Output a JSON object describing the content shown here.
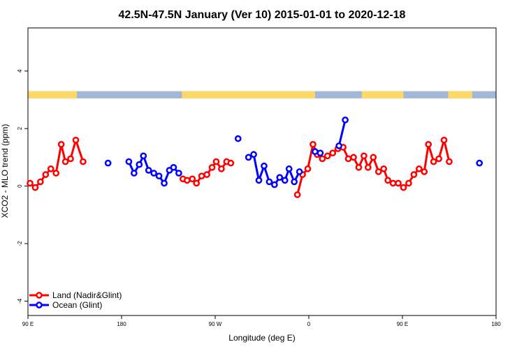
{
  "chart_data": {
    "type": "line",
    "title": "42.5N-47.5N January (Ver 10)   2015-01-01 to 2020-12-18",
    "xlabel": "Longitude (deg E)",
    "ylabel": "XCO2 - MLO trend (ppm)",
    "xlim": [
      90,
      540
    ],
    "ylim": [
      -4.5,
      5.5
    ],
    "x_ticks": [
      {
        "value": 90,
        "label": "90 E"
      },
      {
        "value": 180,
        "label": "180"
      },
      {
        "value": 270,
        "label": "90 W"
      },
      {
        "value": 360,
        "label": "0"
      },
      {
        "value": 450,
        "label": "90 E"
      },
      {
        "value": 540,
        "label": "180"
      }
    ],
    "y_ticks": [
      {
        "value": -4,
        "label": "-4"
      },
      {
        "value": -2,
        "label": "-2"
      },
      {
        "value": 0,
        "label": "0"
      },
      {
        "value": 2,
        "label": "2"
      },
      {
        "value": 4,
        "label": "4"
      }
    ],
    "grid": false,
    "legend_position": "bottom-left",
    "land_ocean_bar": {
      "y_range": [
        3.05,
        3.3
      ],
      "land_color": "#ffd966",
      "ocean_color": "#a3b8d9",
      "land_spans": [
        [
          90,
          137
        ],
        [
          238,
          366
        ],
        [
          411,
          451
        ],
        [
          494,
          517
        ]
      ]
    },
    "series": [
      {
        "name": "Land (Nadir&Glint)",
        "color": "#ff0000",
        "segments": [
          [
            [
              92,
              0.1
            ],
            [
              97,
              -0.05
            ],
            [
              102,
              0.15
            ],
            [
              107,
              0.4
            ],
            [
              112,
              0.6
            ],
            [
              117,
              0.45
            ],
            [
              122,
              1.45
            ],
            [
              126,
              0.85
            ],
            [
              131,
              0.95
            ],
            [
              136,
              1.6
            ],
            [
              143,
              0.85
            ]
          ],
          [
            [
              239,
              0.25
            ],
            [
              243,
              0.2
            ],
            [
              248,
              0.25
            ],
            [
              252,
              0.1
            ],
            [
              257,
              0.35
            ],
            [
              262,
              0.4
            ],
            [
              267,
              0.65
            ],
            [
              271,
              0.85
            ],
            [
              276,
              0.6
            ],
            [
              281,
              0.85
            ],
            [
              285,
              0.8
            ]
          ],
          [
            [
              349,
              -0.3
            ],
            [
              354,
              0.4
            ],
            [
              359,
              0.6
            ],
            [
              364,
              1.45
            ],
            [
              368,
              1.1
            ],
            [
              373,
              0.95
            ],
            [
              378,
              1.05
            ],
            [
              383,
              1.15
            ],
            [
              388,
              1.3
            ],
            [
              393,
              1.35
            ],
            [
              398,
              0.95
            ],
            [
              403,
              1.0
            ],
            [
              408,
              0.65
            ],
            [
              413,
              1.05
            ],
            [
              417,
              0.65
            ],
            [
              422,
              1.0
            ],
            [
              427,
              0.5
            ],
            [
              432,
              0.6
            ],
            [
              436,
              0.2
            ],
            [
              441,
              0.1
            ],
            [
              446,
              0.1
            ],
            [
              451,
              -0.05
            ],
            [
              456,
              0.1
            ],
            [
              461,
              0.4
            ],
            [
              466,
              0.6
            ],
            [
              471,
              0.5
            ],
            [
              475,
              1.45
            ],
            [
              480,
              0.85
            ],
            [
              485,
              0.95
            ],
            [
              490,
              1.6
            ],
            [
              495,
              0.85
            ]
          ]
        ]
      },
      {
        "name": "Ocean (Glint)",
        "color": "#0000ff",
        "segments": [
          [
            [
              167,
              0.8
            ]
          ],
          [
            [
              187,
              0.85
            ],
            [
              192,
              0.45
            ],
            [
              197,
              0.75
            ],
            [
              201,
              1.05
            ],
            [
              206,
              0.55
            ],
            [
              211,
              0.45
            ],
            [
              216,
              0.35
            ],
            [
              221,
              0.1
            ],
            [
              226,
              0.55
            ],
            [
              230,
              0.65
            ],
            [
              235,
              0.45
            ]
          ],
          [
            [
              292,
              1.65
            ]
          ],
          [
            [
              302,
              1.0
            ],
            [
              307,
              1.1
            ],
            [
              312,
              0.2
            ],
            [
              317,
              0.7
            ],
            [
              322,
              0.15
            ],
            [
              327,
              0.05
            ],
            [
              332,
              0.3
            ],
            [
              337,
              0.2
            ],
            [
              341,
              0.6
            ],
            [
              346,
              0.15
            ],
            [
              351,
              0.5
            ]
          ],
          [
            [
              366,
              1.2
            ],
            [
              371,
              1.15
            ]
          ],
          [
            [
              389,
              1.4
            ],
            [
              395,
              2.3
            ]
          ],
          [
            [
              524,
              0.8
            ]
          ]
        ]
      }
    ]
  }
}
